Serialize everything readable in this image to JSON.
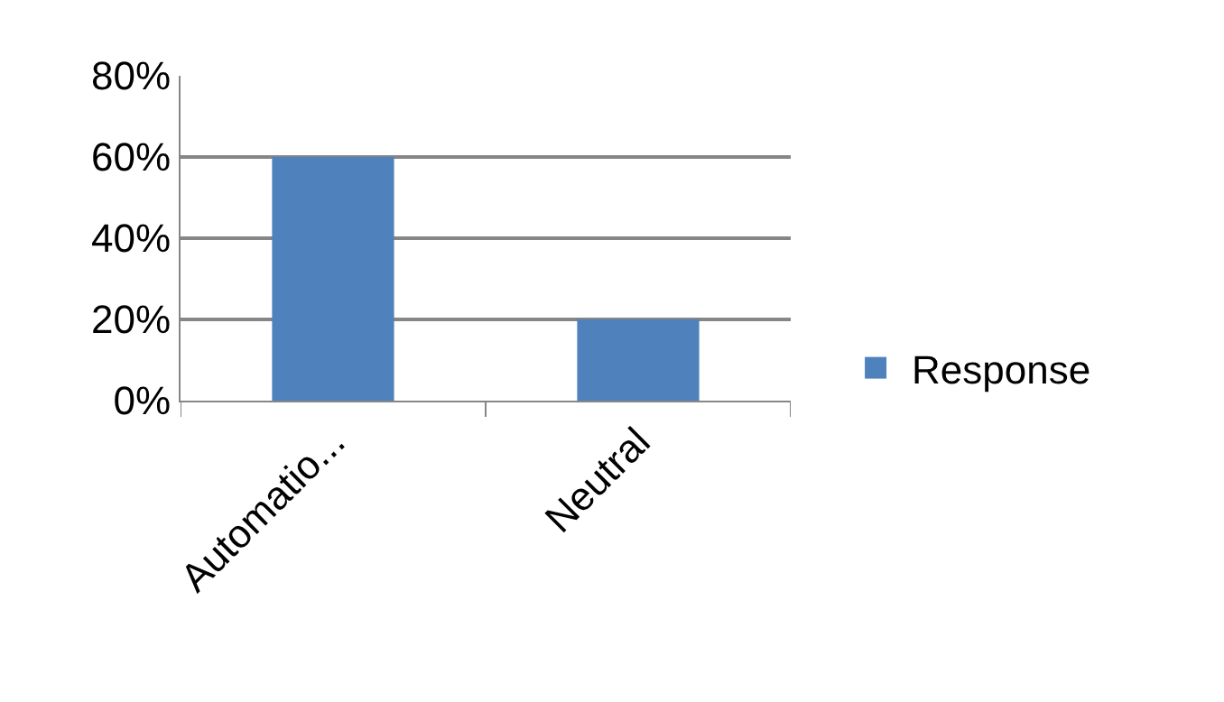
{
  "chart_data": {
    "type": "bar",
    "categories": [
      "Automatio...",
      "Neutral"
    ],
    "series": [
      {
        "name": "Response",
        "color": "#4f81bd",
        "values": [
          60,
          20
        ]
      }
    ],
    "ylim": [
      0,
      80
    ],
    "yticks": [
      {
        "value": 0,
        "label": "0%"
      },
      {
        "value": 20,
        "label": "20%"
      },
      {
        "value": 40,
        "label": "40%"
      },
      {
        "value": 60,
        "label": "60%"
      },
      {
        "value": 80,
        "label": "80%"
      }
    ],
    "grid": "y",
    "legend": "right"
  }
}
